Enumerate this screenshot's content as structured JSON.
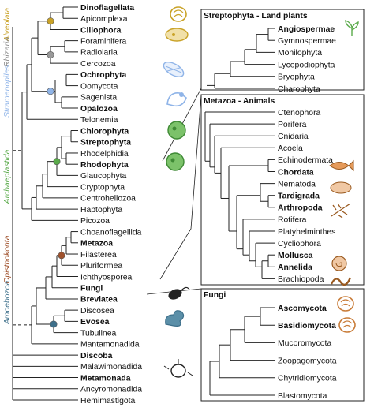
{
  "supergroups": [
    {
      "label": "Alveolata",
      "color": "#c9a227"
    },
    {
      "label": "Rhizaria",
      "color": "#888888"
    },
    {
      "label": "Stramenopiles",
      "color": "#8fb4e8"
    },
    {
      "label": "Archaeplastida",
      "color": "#5aaa4a"
    },
    {
      "label": "Opisthokonta",
      "color": "#a0522d"
    },
    {
      "label": "Amoebozoa",
      "color": "#3d6f8a"
    }
  ],
  "main_taxa": [
    {
      "name": "Dinoflagellata",
      "bold": true
    },
    {
      "name": "Apicomplexa",
      "bold": false
    },
    {
      "name": "Ciliophora",
      "bold": true
    },
    {
      "name": "Foraminifera",
      "bold": false
    },
    {
      "name": "Radiolaria",
      "bold": false
    },
    {
      "name": "Cercozoa",
      "bold": false
    },
    {
      "name": "Ochrophyta",
      "bold": true
    },
    {
      "name": "Oomycota",
      "bold": false
    },
    {
      "name": "Sagenista",
      "bold": false
    },
    {
      "name": "Opalozoa",
      "bold": true
    },
    {
      "name": "Telonemia",
      "bold": false
    },
    {
      "name": "Chlorophyta",
      "bold": true
    },
    {
      "name": "Streptophyta",
      "bold": true
    },
    {
      "name": "Rhodelphidia",
      "bold": false
    },
    {
      "name": "Rhodophyta",
      "bold": true
    },
    {
      "name": "Glaucophyta",
      "bold": false
    },
    {
      "name": "Cryptophyta",
      "bold": false
    },
    {
      "name": "Centroheliozoa",
      "bold": false
    },
    {
      "name": "Haptophyta",
      "bold": false
    },
    {
      "name": "Picozoa",
      "bold": false
    },
    {
      "name": "Choanoflagellida",
      "bold": false
    },
    {
      "name": "Metazoa",
      "bold": true
    },
    {
      "name": "Filasterea",
      "bold": false
    },
    {
      "name": "Pluriformea",
      "bold": false
    },
    {
      "name": "Ichthyosporea",
      "bold": false
    },
    {
      "name": "Fungi",
      "bold": true
    },
    {
      "name": "Breviatea",
      "bold": true
    },
    {
      "name": "Discosea",
      "bold": false
    },
    {
      "name": "Evosea",
      "bold": true
    },
    {
      "name": "Tubulinea",
      "bold": false
    },
    {
      "name": "Mantamonadida",
      "bold": false
    },
    {
      "name": "Discoba",
      "bold": true
    },
    {
      "name": "Malawimonadida",
      "bold": false
    },
    {
      "name": "Metamonada",
      "bold": true
    },
    {
      "name": "Ancyromonadida",
      "bold": false
    },
    {
      "name": "Hemimastigota",
      "bold": false
    }
  ],
  "panels": [
    {
      "title": "Streptophyta - Land plants",
      "taxa": [
        {
          "name": "Angiospermae",
          "bold": true
        },
        {
          "name": "Gymnospermae",
          "bold": false
        },
        {
          "name": "Monilophyta",
          "bold": false
        },
        {
          "name": "Lycopodiophyta",
          "bold": false
        },
        {
          "name": "Bryophyta",
          "bold": false
        },
        {
          "name": "Charophyta",
          "bold": false
        }
      ]
    },
    {
      "title": "Metazoa - Animals",
      "taxa": [
        {
          "name": "Ctenophora",
          "bold": false
        },
        {
          "name": "Porifera",
          "bold": false
        },
        {
          "name": "Cnidaria",
          "bold": false
        },
        {
          "name": "Acoela",
          "bold": false
        },
        {
          "name": "Echinodermata",
          "bold": false
        },
        {
          "name": "Chordata",
          "bold": true
        },
        {
          "name": "Nematoda",
          "bold": false
        },
        {
          "name": "Tardigrada",
          "bold": true
        },
        {
          "name": "Arthropoda",
          "bold": true
        },
        {
          "name": "Rotifera",
          "bold": false
        },
        {
          "name": "Platyhelminthes",
          "bold": false
        },
        {
          "name": "Cycliophora",
          "bold": false
        },
        {
          "name": "Mollusca",
          "bold": true
        },
        {
          "name": "Annelida",
          "bold": true
        },
        {
          "name": "Brachiopoda",
          "bold": false
        }
      ]
    },
    {
      "title": "Fungi",
      "taxa": [
        {
          "name": "Ascomycota",
          "bold": true
        },
        {
          "name": "Basidiomycota",
          "bold": true
        },
        {
          "name": "Mucoromycota",
          "bold": false
        },
        {
          "name": "Zoopagomycota",
          "bold": false
        },
        {
          "name": "Chytridiomycota",
          "bold": false
        },
        {
          "name": "Blastomycota",
          "bold": false
        }
      ]
    }
  ],
  "illustrations": [
    {
      "icon": "dinoflagellate-icon",
      "color": "#c9a227"
    },
    {
      "icon": "ciliate-icon",
      "color": "#c9a227"
    },
    {
      "icon": "radiolarian-icon",
      "color": "#8fb4e8"
    },
    {
      "icon": "diatom-icon",
      "color": "#8fb4e8"
    },
    {
      "icon": "green-alga-icon",
      "color": "#5aaa4a"
    },
    {
      "icon": "red-alga-icon",
      "color": "#5aaa4a"
    },
    {
      "icon": "amoeba-icon",
      "color": "#3d6f8a"
    },
    {
      "icon": "flagellate-icon",
      "color": "#222222"
    },
    {
      "icon": "protist-cell-icon",
      "color": "#222222"
    },
    {
      "icon": "leaf-icon",
      "color": "#5aaa4a"
    },
    {
      "icon": "fish-icon",
      "color": "#c97d3a"
    },
    {
      "icon": "tardigrade-icon",
      "color": "#c97d3a"
    },
    {
      "icon": "arthropod-icon",
      "color": "#c97d3a"
    },
    {
      "icon": "snail-icon",
      "color": "#c97d3a"
    },
    {
      "icon": "worm-icon",
      "color": "#c97d3a"
    },
    {
      "icon": "mushroom-icon",
      "color": "#c97d3a"
    },
    {
      "icon": "fungal-fruiting-body-icon",
      "color": "#c97d3a"
    }
  ]
}
